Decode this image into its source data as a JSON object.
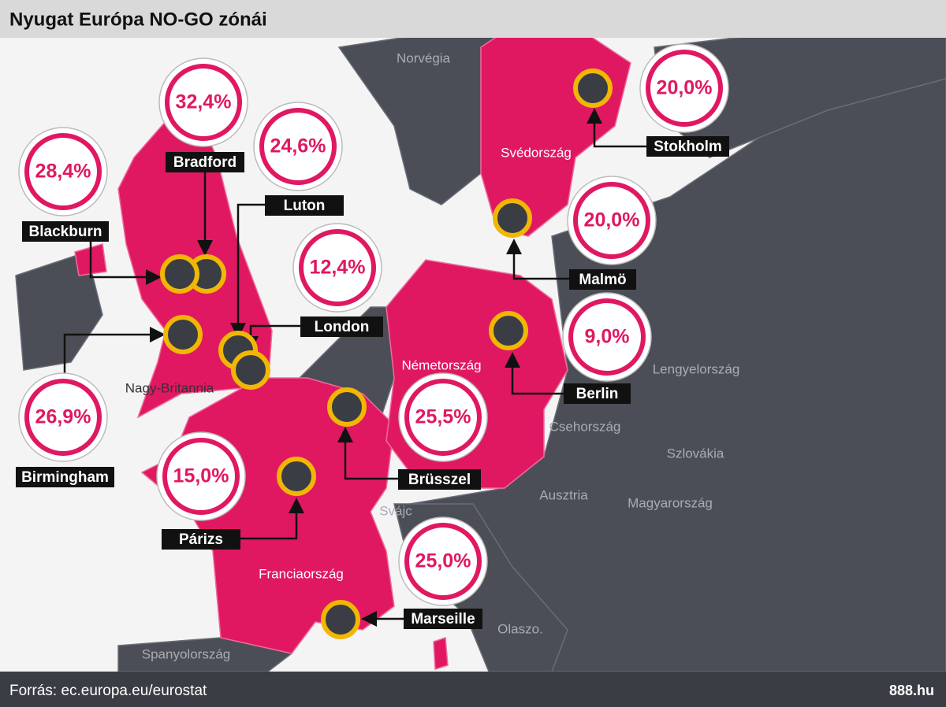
{
  "header": {
    "title": "Nyugat Európa NO-GO zónái"
  },
  "countries": [
    "Norvégia",
    "Svédország",
    "Nagy-Britannia",
    "Németország",
    "Franciaország",
    "Lengyelország",
    "Csehország",
    "Szlovákia",
    "Ausztria",
    "Magyarország",
    "Svájc",
    "Olaszo.",
    "Spanyolország"
  ],
  "cities": [
    {
      "name": "Bradford",
      "value": "32,4%"
    },
    {
      "name": "Blackburn",
      "value": "28,4%"
    },
    {
      "name": "Luton",
      "value": "24,6%"
    },
    {
      "name": "London",
      "value": "12,4%"
    },
    {
      "name": "Birmingham",
      "value": "26,9%"
    },
    {
      "name": "Párizs",
      "value": "15,0%"
    },
    {
      "name": "Brüsszel",
      "value": "25,5%"
    },
    {
      "name": "Marseille",
      "value": "25,0%"
    },
    {
      "name": "Berlin",
      "value": "9,0%"
    },
    {
      "name": "Malmö",
      "value": "20,0%"
    },
    {
      "name": "Stokholm",
      "value": "20,0%"
    }
  ],
  "footer": {
    "source": "Forrás: ec.europa.eu/eurostat",
    "logo": "888.hu"
  }
}
